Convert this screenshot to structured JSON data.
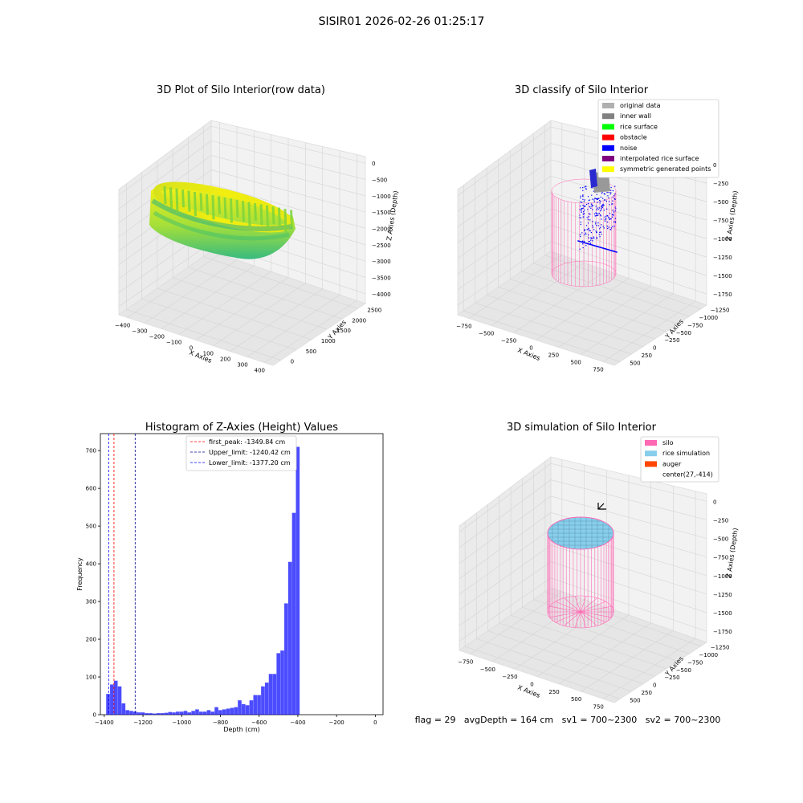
{
  "suptitle": "SISIR01 2026-02-26 01:25:17",
  "panels": {
    "raw": {
      "title": "3D Plot of Silo Interior(row data)",
      "xlabel": "X Axies",
      "ylabel": "Y Axies",
      "zlabel": "Z Axies (Depth)",
      "x_ticks": [
        "−400",
        "−300",
        "−200",
        "−100",
        "0",
        "100",
        "200",
        "300",
        "400"
      ],
      "y_ticks": [
        "0",
        "500",
        "1000",
        "1500",
        "2000",
        "2500"
      ],
      "z_ticks": [
        "0",
        "−500",
        "−1000",
        "−1500",
        "−2000",
        "−2500",
        "−3000",
        "−3500",
        "−4000"
      ]
    },
    "classify": {
      "title": "3D classify of Silo Interior",
      "xlabel": "X Axies",
      "ylabel": "Y Axies",
      "zlabel": "Z Axies (Depth)",
      "x_ticks": [
        "−750",
        "−500",
        "−250",
        "0",
        "250",
        "500",
        "750"
      ],
      "y_ticks": [
        "500",
        "250",
        "0",
        "−250",
        "−500",
        "−750",
        "−1000",
        "−1250"
      ],
      "z_ticks": [
        "0",
        "−250",
        "−500",
        "−750",
        "−1000",
        "−1250",
        "−1500",
        "−1750"
      ],
      "legend": [
        {
          "label": "original data",
          "color": "#b0b0b0"
        },
        {
          "label": "inner wall",
          "color": "#808080"
        },
        {
          "label": "rice surface",
          "color": "#00ff00"
        },
        {
          "label": "obstacle",
          "color": "#ff0000"
        },
        {
          "label": "noise",
          "color": "#0000ff"
        },
        {
          "label": "interpolated rice surface",
          "color": "#800080"
        },
        {
          "label": "symmetric generated points",
          "color": "#ffff00"
        }
      ]
    },
    "sim": {
      "title": "3D simulation of Silo Interior",
      "xlabel": "X Axies",
      "ylabel": "Y Axies",
      "zlabel": "Z Axies (Depth)",
      "x_ticks": [
        "−750",
        "−500",
        "−250",
        "0",
        "250",
        "500",
        "750"
      ],
      "y_ticks": [
        "500",
        "250",
        "0",
        "−250",
        "−500",
        "−750",
        "−1000",
        "−1250"
      ],
      "z_ticks": [
        "0",
        "−250",
        "−500",
        "−750",
        "−1000",
        "−1250",
        "−1500",
        "−1750"
      ],
      "legend": [
        {
          "label": "silo",
          "color": "#ff69b4"
        },
        {
          "label": "rice simulation",
          "color": "#87ceeb"
        },
        {
          "label": "auger",
          "color": "#ff4500"
        },
        {
          "label": "center(27,-414)",
          "color": ""
        }
      ]
    }
  },
  "status_line": "flag = 29   avgDepth = 164 cm   sv1 = 700~2300   sv2 = 700~2300",
  "chart_data": [
    {
      "type": "histogram",
      "title": "Histogram of Z-Axies (Height) Values",
      "xlabel": "Depth (cm)",
      "ylabel": "Frequency",
      "xlim": [
        -1420,
        40
      ],
      "ylim": [
        0,
        745
      ],
      "x_ticks": [
        -1400,
        -1200,
        -1000,
        -800,
        -600,
        -400,
        -200,
        0
      ],
      "x_tick_labels": [
        "−1400",
        "−1200",
        "−1000",
        "−800",
        "−600",
        "−400",
        "−200",
        "0"
      ],
      "y_ticks": [
        0,
        100,
        200,
        300,
        400,
        500,
        600,
        700
      ],
      "bin_width": 20,
      "bin_start": -1390,
      "counts": [
        55,
        80,
        90,
        75,
        30,
        12,
        10,
        8,
        6,
        6,
        4,
        4,
        3,
        4,
        4,
        5,
        7,
        6,
        8,
        8,
        10,
        6,
        10,
        14,
        8,
        8,
        12,
        8,
        20,
        12,
        14,
        16,
        18,
        20,
        38,
        28,
        25,
        38,
        52,
        52,
        75,
        85,
        108,
        108,
        163,
        170,
        295,
        405,
        535,
        710
      ],
      "color": "#0000ff",
      "vlines": [
        {
          "label": "first_peak: -1349.84 cm",
          "x": -1349.84,
          "color": "#ff0000"
        },
        {
          "label": "Upper_limit: -1240.42 cm",
          "x": -1240.42,
          "color": "#00008b"
        },
        {
          "label": "Lower_limit: -1377.20 cm",
          "x": -1377.2,
          "color": "#0000ff"
        }
      ]
    }
  ]
}
